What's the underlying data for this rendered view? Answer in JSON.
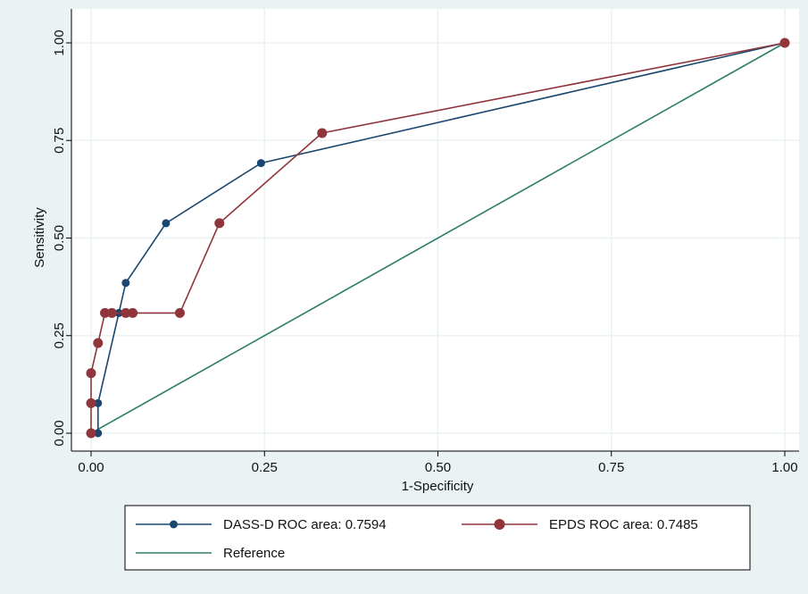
{
  "chart_data": {
    "type": "line",
    "title": "",
    "xlabel": "1-Specificity",
    "ylabel": "Sensitivity",
    "xlim": [
      0,
      1
    ],
    "ylim": [
      0,
      1
    ],
    "xticks": [
      "0.00",
      "0.25",
      "0.50",
      "0.75",
      "1.00"
    ],
    "yticks": [
      "0.00",
      "0.25",
      "0.50",
      "0.75",
      "1.00"
    ],
    "grid": true,
    "legend_position": "bottom",
    "background": "#eaf2f3",
    "plot_background": "#ffffff",
    "series": [
      {
        "name": "DASS-D ROC area: 0.7594",
        "color": "#1a476f",
        "marker": "small-circle",
        "points": [
          [
            0.0,
            0.0
          ],
          [
            0.01,
            0.0
          ],
          [
            0.01,
            0.077
          ],
          [
            0.04,
            0.308
          ],
          [
            0.05,
            0.385
          ],
          [
            0.108,
            0.538
          ],
          [
            0.245,
            0.692
          ],
          [
            1.0,
            1.0
          ]
        ]
      },
      {
        "name": "EPDS ROC area: 0.7485",
        "color": "#90353b",
        "marker": "large-circle",
        "points": [
          [
            0.0,
            0.0
          ],
          [
            0.0,
            0.077
          ],
          [
            0.0,
            0.154
          ],
          [
            0.01,
            0.231
          ],
          [
            0.02,
            0.308
          ],
          [
            0.03,
            0.308
          ],
          [
            0.05,
            0.308
          ],
          [
            0.06,
            0.308
          ],
          [
            0.128,
            0.308
          ],
          [
            0.185,
            0.538
          ],
          [
            0.333,
            0.769
          ],
          [
            1.0,
            1.0
          ]
        ]
      },
      {
        "name": "Reference",
        "color": "#2e7d6b",
        "marker": "none",
        "points": [
          [
            0,
            0
          ],
          [
            1,
            1
          ]
        ]
      }
    ]
  }
}
